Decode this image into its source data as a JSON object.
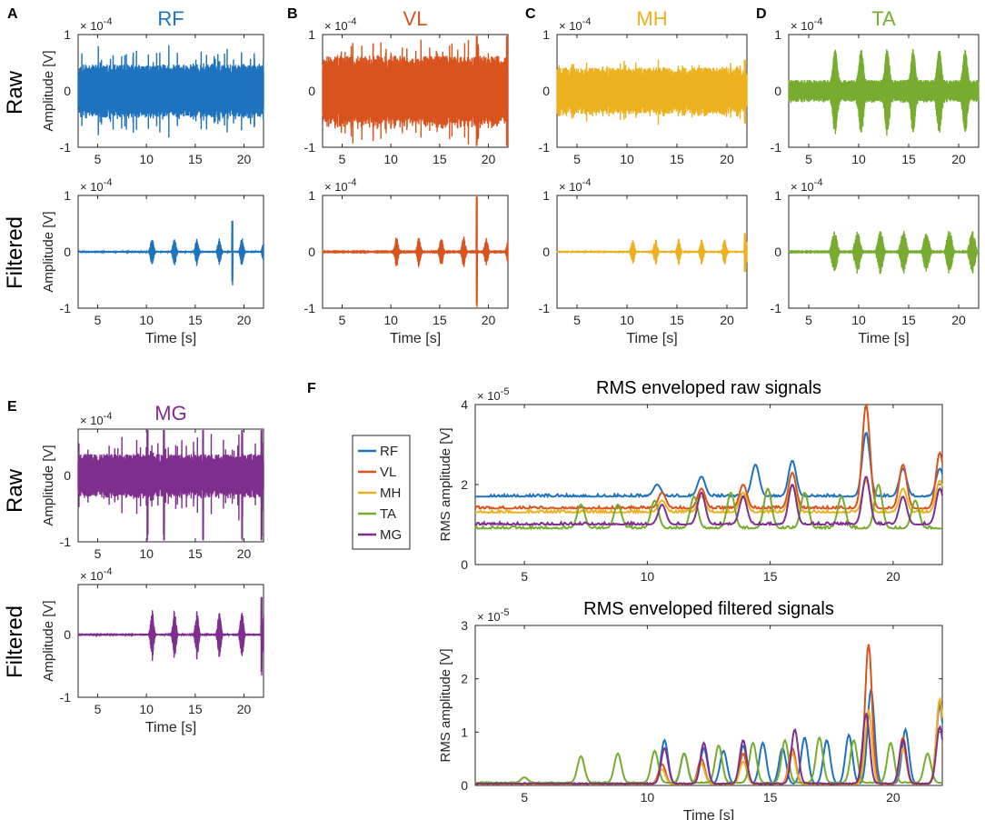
{
  "figure": {
    "panel_letters": [
      "A",
      "B",
      "C",
      "D",
      "E",
      "F"
    ],
    "row_labels": {
      "raw": "Raw",
      "filtered": "Filtered"
    },
    "exponent_label": "× 10",
    "exp_neg4": "-4",
    "exp_neg5": "-5",
    "amp_label": "Amplitude [V]",
    "time_label": "Time [s]",
    "rms_label": "RMS amplitude [V]"
  },
  "colors": {
    "RF": "#1f72bd",
    "VL": "#d9531e",
    "MH": "#edb120",
    "TA": "#77ac30",
    "MG": "#7e2f8e"
  },
  "legend": {
    "entries": [
      "RF",
      "VL",
      "MH",
      "TA",
      "MG"
    ]
  },
  "chart_data": [
    {
      "id": "A-raw",
      "type": "line",
      "muscle": "RF",
      "title": "RF",
      "ylabel": "Amplitude [V]",
      "xlabel": "",
      "xlim": [
        3,
        22
      ],
      "ylim": [
        -1,
        1
      ],
      "y_multiplier": "1e-4",
      "xticks": [
        5,
        10,
        15,
        20
      ],
      "yticks": [
        -1,
        0,
        1
      ],
      "description": "Raw EMG, amplitude approx +/-0.4 to 0.9 x1e-4 V"
    },
    {
      "id": "A-filt",
      "type": "line",
      "muscle": "RF",
      "title": "",
      "ylabel": "Amplitude [V]",
      "xlabel": "Time [s]",
      "xlim": [
        3,
        22
      ],
      "ylim": [
        -1,
        1
      ],
      "y_multiplier": "1e-4",
      "xticks": [
        5,
        10,
        15,
        20
      ],
      "yticks": [
        -1,
        0,
        1
      ],
      "description": "Filtered EMG bursts from ~10 s, peaks ~0.5 x1e-4 V"
    },
    {
      "id": "B-raw",
      "type": "line",
      "muscle": "VL",
      "title": "VL",
      "ylabel": "",
      "xlabel": "",
      "xlim": [
        3,
        22
      ],
      "ylim": [
        -1,
        1
      ],
      "y_multiplier": "1e-4",
      "xticks": [
        5,
        10,
        15,
        20
      ],
      "yticks": [
        -1,
        0,
        1
      ],
      "description": "Raw EMG, amplitude approx +/-0.5 x1e-4 V, spikes near 19 s"
    },
    {
      "id": "B-filt",
      "type": "line",
      "muscle": "VL",
      "title": "",
      "ylabel": "",
      "xlabel": "Time [s]",
      "xlim": [
        3,
        22
      ],
      "ylim": [
        -1,
        1
      ],
      "y_multiplier": "1e-4",
      "xticks": [
        5,
        10,
        15,
        20
      ],
      "yticks": [
        -1,
        0,
        1
      ],
      "description": "Filtered bursts from ~10 s, large spike ~1 x1e-4 V at 19 s"
    },
    {
      "id": "C-raw",
      "type": "line",
      "muscle": "MH",
      "title": "MH",
      "ylabel": "",
      "xlabel": "",
      "xlim": [
        3,
        22
      ],
      "ylim": [
        -1,
        1
      ],
      "y_multiplier": "1e-4",
      "xticks": [
        5,
        10,
        15,
        20
      ],
      "yticks": [
        -1,
        0,
        1
      ],
      "description": "Raw EMG, amplitude approx +/-0.3 x1e-4 V"
    },
    {
      "id": "C-filt",
      "type": "line",
      "muscle": "MH",
      "title": "",
      "ylabel": "",
      "xlabel": "Time [s]",
      "xlim": [
        3,
        22
      ],
      "ylim": [
        -1,
        1
      ],
      "y_multiplier": "1e-4",
      "xticks": [
        5,
        10,
        15,
        20
      ],
      "yticks": [
        -1,
        0,
        1
      ],
      "description": "Filtered bursts from ~10 s, peaks ~0.3 x1e-4 V"
    },
    {
      "id": "D-raw",
      "type": "line",
      "muscle": "TA",
      "title": "TA",
      "ylabel": "",
      "xlabel": "",
      "xlim": [
        3,
        22
      ],
      "ylim": [
        -1,
        1
      ],
      "y_multiplier": "1e-4",
      "xticks": [
        5,
        10,
        15,
        20
      ],
      "yticks": [
        -1,
        0,
        1
      ],
      "description": "Raw EMG with bursts from ~7 s, amplitude up to ~0.6 x1e-4 V"
    },
    {
      "id": "D-filt",
      "type": "line",
      "muscle": "TA",
      "title": "",
      "ylabel": "",
      "xlabel": "Time [s]",
      "xlim": [
        3,
        22
      ],
      "ylim": [
        -1,
        1
      ],
      "y_multiplier": "1e-4",
      "xticks": [
        5,
        10,
        15,
        20
      ],
      "yticks": [
        -1,
        0,
        1
      ],
      "description": "Filtered bursts from ~7 s, peaks ~0.3 x1e-4 V"
    },
    {
      "id": "E-raw",
      "type": "line",
      "muscle": "MG",
      "title": "MG",
      "ylabel": "Amplitude [V]",
      "xlabel": "",
      "xlim": [
        3,
        22
      ],
      "ylim": [
        -1,
        0.7
      ],
      "y_multiplier": "1e-4",
      "xticks": [
        5,
        10,
        15,
        20
      ],
      "yticks": [
        -1,
        0
      ],
      "description": "Raw EMG, amplitude approx +/-0.3 x1e-4 V, spikes to -1 x1e-4 V"
    },
    {
      "id": "E-filt",
      "type": "line",
      "muscle": "MG",
      "title": "",
      "ylabel": "Amplitude [V]",
      "xlabel": "Time [s]",
      "xlim": [
        3,
        22
      ],
      "ylim": [
        -1,
        0.8
      ],
      "y_multiplier": "1e-4",
      "xticks": [
        5,
        10,
        15,
        20
      ],
      "yticks": [
        -1,
        0
      ],
      "description": "Filtered bursts from ~10 s, peaks ~0.5 x1e-4 V"
    },
    {
      "id": "F-raw",
      "type": "line",
      "title": "RMS enveloped raw signals",
      "ylabel": "RMS amplitude [V]",
      "xlabel": "",
      "xlim": [
        3,
        22
      ],
      "ylim": [
        0,
        4
      ],
      "y_multiplier": "1e-5",
      "xticks": [
        5,
        10,
        15,
        20
      ],
      "yticks": [
        0,
        2,
        4
      ],
      "series": [
        {
          "name": "RF",
          "baseline": 1.7,
          "peaks": [
            [
              10.4,
              2.0
            ],
            [
              12.2,
              2.2
            ],
            [
              14.4,
              2.5
            ],
            [
              15.9,
              2.6
            ],
            [
              18.9,
              3.3
            ],
            [
              20.4,
              2.4
            ],
            [
              21.9,
              2.4
            ]
          ]
        },
        {
          "name": "VL",
          "baseline": 1.4,
          "peaks": [
            [
              10.6,
              1.8
            ],
            [
              12.2,
              1.9
            ],
            [
              13.9,
              2.0
            ],
            [
              15.9,
              2.3
            ],
            [
              18.9,
              4.0
            ],
            [
              20.4,
              2.5
            ],
            [
              21.9,
              2.8
            ]
          ]
        },
        {
          "name": "MH",
          "baseline": 1.3,
          "peaks": [
            [
              10.6,
              1.6
            ],
            [
              12.2,
              1.7
            ],
            [
              13.9,
              1.8
            ],
            [
              15.9,
              2.0
            ],
            [
              18.9,
              2.1
            ],
            [
              20.4,
              1.9
            ],
            [
              21.9,
              2.1
            ]
          ]
        },
        {
          "name": "TA",
          "baseline": 0.9,
          "peaks": [
            [
              7.3,
              1.5
            ],
            [
              8.8,
              1.5
            ],
            [
              10.3,
              1.6
            ],
            [
              11.9,
              1.7
            ],
            [
              13.4,
              1.8
            ],
            [
              14.9,
              1.9
            ],
            [
              16.4,
              1.8
            ],
            [
              17.9,
              1.7
            ],
            [
              19.4,
              2.0
            ],
            [
              20.9,
              1.6
            ]
          ]
        },
        {
          "name": "MG",
          "baseline": 1.0,
          "peaks": [
            [
              10.6,
              1.5
            ],
            [
              12.2,
              1.8
            ],
            [
              13.9,
              1.7
            ],
            [
              15.9,
              2.0
            ],
            [
              18.9,
              2.2
            ],
            [
              20.4,
              1.7
            ],
            [
              21.9,
              1.9
            ]
          ]
        }
      ]
    },
    {
      "id": "F-filt",
      "type": "line",
      "title": "RMS enveloped filtered signals",
      "ylabel": "RMS amplitude [V]",
      "xlabel": "Time [s]",
      "xlim": [
        3,
        22
      ],
      "ylim": [
        0,
        3
      ],
      "y_multiplier": "1e-5",
      "xticks": [
        5,
        10,
        15,
        20
      ],
      "yticks": [
        0,
        1,
        2,
        3
      ],
      "series": [
        {
          "name": "RF",
          "baseline": 0.03,
          "peaks": [
            [
              10.7,
              0.85
            ],
            [
              11.5,
              0.6
            ],
            [
              12.3,
              0.7
            ],
            [
              13.1,
              0.65
            ],
            [
              13.9,
              0.75
            ],
            [
              14.7,
              0.8
            ],
            [
              15.5,
              0.7
            ],
            [
              16.4,
              0.9
            ],
            [
              17.3,
              0.85
            ],
            [
              18.2,
              0.95
            ],
            [
              19.1,
              1.8
            ],
            [
              20.5,
              1.05
            ],
            [
              21.9,
              1.5
            ]
          ]
        },
        {
          "name": "VL",
          "baseline": 0.03,
          "peaks": [
            [
              10.6,
              0.4
            ],
            [
              12.2,
              0.5
            ],
            [
              13.9,
              0.6
            ],
            [
              15.9,
              0.7
            ],
            [
              19.0,
              2.65
            ],
            [
              20.4,
              0.9
            ],
            [
              21.9,
              1.6
            ]
          ]
        },
        {
          "name": "MH",
          "baseline": 0.02,
          "peaks": [
            [
              10.6,
              0.3
            ],
            [
              12.2,
              0.4
            ],
            [
              13.9,
              0.45
            ],
            [
              15.9,
              0.6
            ],
            [
              19.0,
              1.4
            ],
            [
              20.4,
              0.7
            ],
            [
              21.9,
              1.62
            ]
          ]
        },
        {
          "name": "TA",
          "baseline": 0.05,
          "peaks": [
            [
              5.0,
              0.15
            ],
            [
              7.3,
              0.55
            ],
            [
              8.8,
              0.6
            ],
            [
              10.3,
              0.65
            ],
            [
              11.5,
              0.6
            ],
            [
              12.9,
              0.75
            ],
            [
              14.3,
              0.8
            ],
            [
              15.6,
              0.85
            ],
            [
              17.0,
              0.9
            ],
            [
              18.4,
              0.85
            ],
            [
              19.9,
              0.8
            ],
            [
              21.4,
              0.6
            ]
          ]
        },
        {
          "name": "MG",
          "baseline": 0.03,
          "peaks": [
            [
              10.7,
              0.7
            ],
            [
              12.3,
              0.8
            ],
            [
              13.9,
              0.85
            ],
            [
              16.0,
              1.05
            ],
            [
              18.9,
              1.35
            ],
            [
              20.4,
              0.85
            ],
            [
              21.9,
              1.1
            ]
          ]
        }
      ]
    }
  ]
}
